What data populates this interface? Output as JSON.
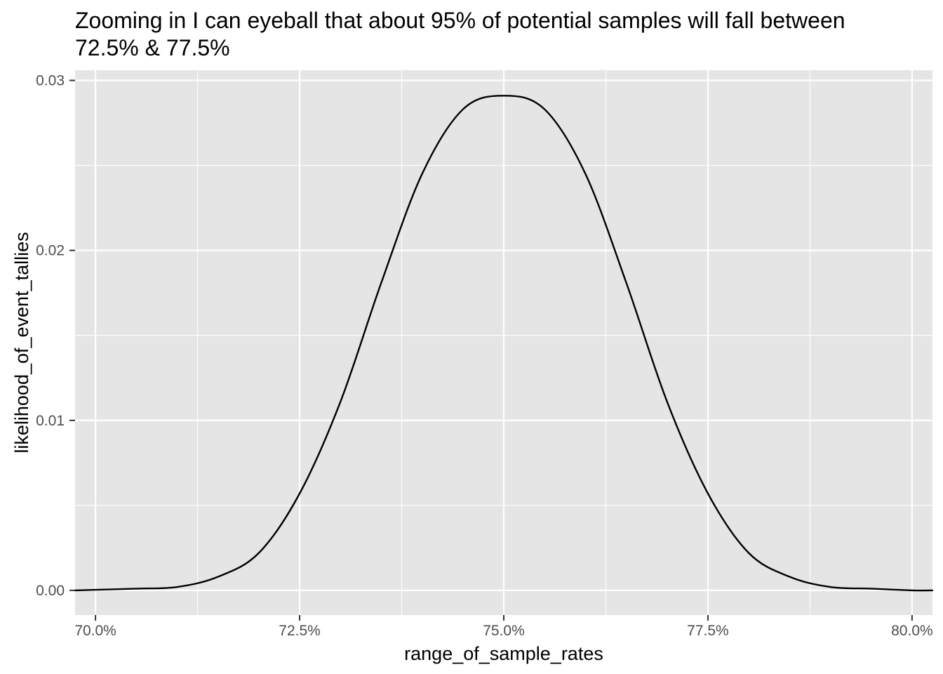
{
  "chart_data": {
    "type": "line",
    "title_lines": [
      "Zooming in I can eyeball that about 95% of potential samples will fall between",
      "72.5% & 77.5%"
    ],
    "xlabel": "range_of_sample_rates",
    "ylabel": "likelihood_of_event_tallies",
    "x_ticks": [
      0.7,
      0.725,
      0.75,
      0.775,
      0.8
    ],
    "x_tick_labels": [
      "70.0%",
      "72.5%",
      "75.0%",
      "77.5%",
      "80.0%"
    ],
    "y_ticks": [
      0.0,
      0.01,
      0.02,
      0.03
    ],
    "y_tick_labels": [
      "0.00",
      "0.01",
      "0.02",
      "0.03"
    ],
    "xlim": [
      0.6975,
      0.8025
    ],
    "ylim": [
      -0.00145,
      0.0306
    ],
    "grid": true,
    "x": [
      0.6975,
      0.705,
      0.71,
      0.715,
      0.72,
      0.725,
      0.73,
      0.735,
      0.74,
      0.745,
      0.75,
      0.755,
      0.76,
      0.765,
      0.77,
      0.775,
      0.78,
      0.785,
      0.79,
      0.795,
      0.8,
      0.8025
    ],
    "y": [
      0.0,
      0.0001,
      0.0002,
      0.0008,
      0.0022,
      0.0057,
      0.0111,
      0.0181,
      0.0245,
      0.0283,
      0.0291,
      0.0283,
      0.0245,
      0.0181,
      0.0111,
      0.0057,
      0.0022,
      0.0008,
      0.0002,
      0.0001,
      0.0,
      0.0
    ],
    "colors": {
      "panel_background": "#e5e5e5",
      "grid_major": "#ffffff",
      "line": "#000000",
      "tick_text": "#4d4d4d"
    }
  }
}
